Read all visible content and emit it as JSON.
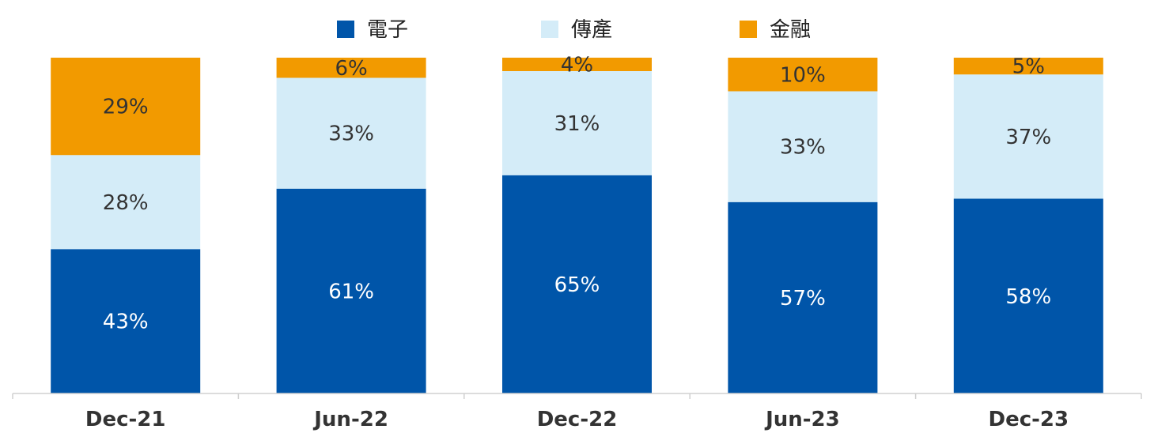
{
  "chart_data": {
    "type": "bar",
    "stacked": true,
    "percent": true,
    "categories": [
      "Dec-21",
      "Jun-22",
      "Dec-22",
      "Jun-23",
      "Dec-23"
    ],
    "series": [
      {
        "name": "電子",
        "color": "#0055A9",
        "label_color": "#ffffff",
        "values": [
          43,
          61,
          65,
          57,
          58
        ]
      },
      {
        "name": "傳產",
        "color": "#D4ECF8",
        "label_color": "#333333",
        "values": [
          28,
          33,
          31,
          33,
          37
        ]
      },
      {
        "name": "金融",
        "color": "#F29A00",
        "label_color": "#333333",
        "values": [
          29,
          6,
          4,
          10,
          5
        ]
      }
    ],
    "data_labels": [
      [
        "43%",
        "61%",
        "65%",
        "57%",
        "58%"
      ],
      [
        "28%",
        "33%",
        "31%",
        "33%",
        "37%"
      ],
      [
        "29%",
        "6%",
        "4%",
        "10%",
        "5%"
      ]
    ],
    "ylim": [
      0,
      100
    ],
    "grid": false,
    "legend_position": "top"
  }
}
